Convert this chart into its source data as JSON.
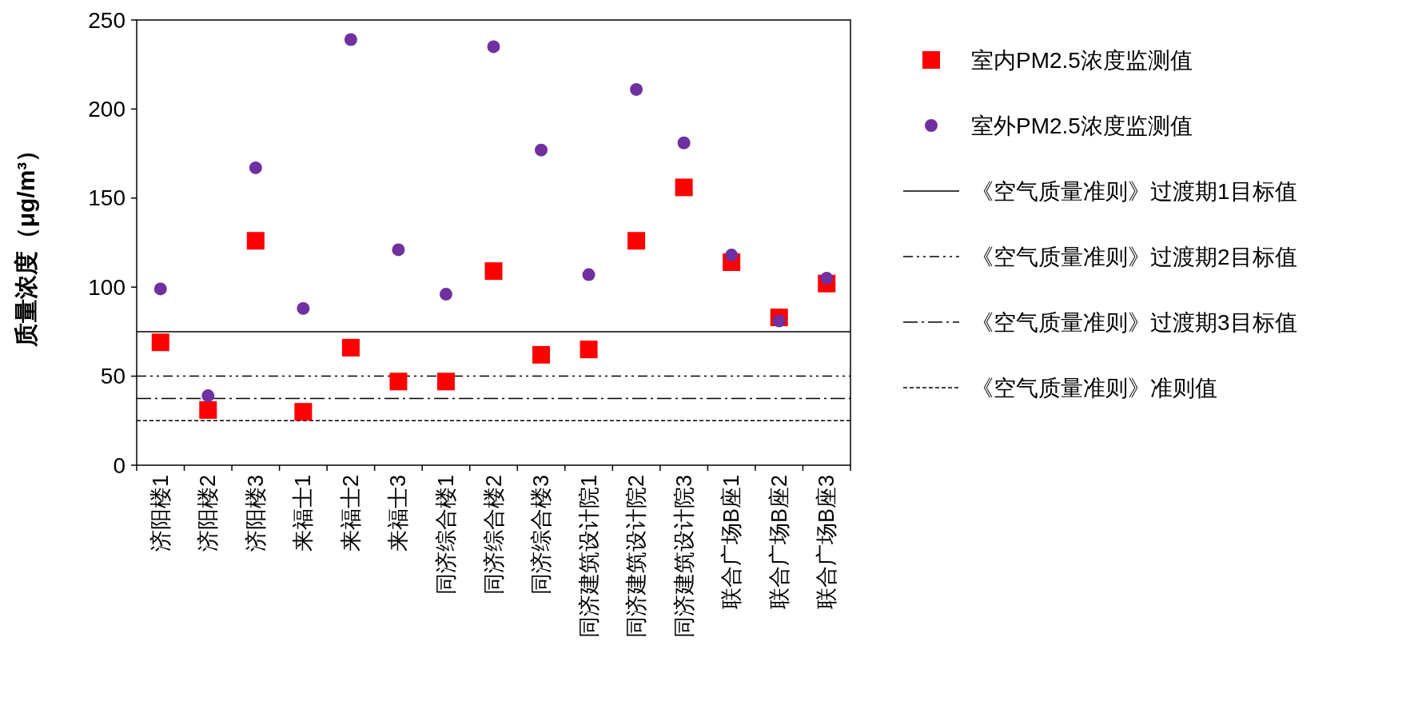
{
  "chart_data": {
    "type": "scatter",
    "ylabel": "质量浓度（μg/m³）",
    "categories": [
      "济阳楼1",
      "济阳楼2",
      "济阳楼3",
      "来福士1",
      "来福士2",
      "来福士3",
      "同济综合楼1",
      "同济综合楼2",
      "同济综合楼3",
      "同济建筑设计院1",
      "同济建筑设计院2",
      "同济建筑设计院3",
      "联合广场B座1",
      "联合广场B座2",
      "联合广场B座3"
    ],
    "series": [
      {
        "name": "室内PM2.5浓度监测值",
        "color": "#ff0000",
        "marker": "square",
        "values": [
          69,
          31,
          126,
          30,
          66,
          47,
          47,
          109,
          62,
          65,
          126,
          156,
          114,
          83,
          102
        ]
      },
      {
        "name": "室外PM2.5浓度监测值",
        "color": "#7030a0",
        "marker": "circle",
        "values": [
          99,
          39,
          167,
          88,
          239,
          121,
          96,
          235,
          177,
          107,
          211,
          181,
          118,
          81,
          105
        ]
      }
    ],
    "ref_lines": [
      {
        "axis": "y",
        "value": 75,
        "label": "《空气质量准则》过渡期1目标值",
        "color": "#000000",
        "line_style": "solid"
      },
      {
        "axis": "y",
        "value": 50,
        "label": "《空气质量准则》过渡期2目标值",
        "color": "#000000",
        "line_style": "dash-dot-dot"
      },
      {
        "axis": "y",
        "value": 37.5,
        "label": "《空气质量准则》过渡期3目标值",
        "color": "#000000",
        "line_style": "dash-dot"
      },
      {
        "axis": "y",
        "value": 25,
        "label": "《空气质量准则》准则值",
        "color": "#000000",
        "line_style": "dashed"
      }
    ],
    "ylim": [
      0,
      250
    ],
    "yticks": [
      0,
      50,
      100,
      150,
      200,
      250
    ],
    "grid": false,
    "legend": "right"
  }
}
